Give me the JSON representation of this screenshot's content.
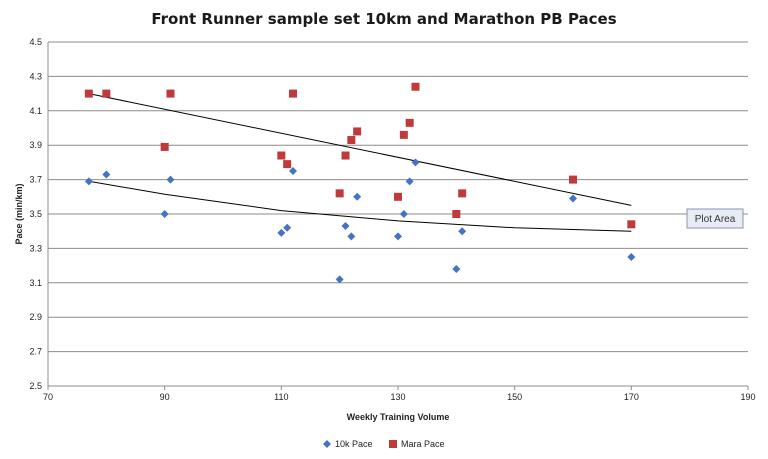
{
  "chart_data": {
    "type": "scatter",
    "title": "Front Runner sample set 10km and Marathon PB Paces",
    "xlabel": "Weekly Training Volume",
    "ylabel": "Pace (min/km)",
    "xlim": [
      70,
      190
    ],
    "ylim": [
      2.5,
      4.5
    ],
    "x_ticks": [
      70,
      90,
      110,
      130,
      150,
      170,
      190
    ],
    "y_ticks": [
      2.5,
      2.7,
      2.9,
      3.1,
      3.3,
      3.5,
      3.7,
      3.9,
      4.1,
      4.3,
      4.5
    ],
    "y_tick_labels": [
      "2.5",
      "2.7",
      "2.9",
      "3.1",
      "3.3",
      "3.5",
      "3.7",
      "3.9",
      "4.1",
      "4.3",
      "4.5"
    ],
    "grid": "horizontal",
    "legend_position": "bottom",
    "series": [
      {
        "name": "10k Pace",
        "marker": "diamond",
        "color": "#4472C4",
        "points": [
          [
            77,
            3.69
          ],
          [
            80,
            3.73
          ],
          [
            90,
            3.5
          ],
          [
            91,
            3.7
          ],
          [
            110,
            3.39
          ],
          [
            111,
            3.42
          ],
          [
            112,
            3.75
          ],
          [
            120,
            3.12
          ],
          [
            121,
            3.43
          ],
          [
            122,
            3.37
          ],
          [
            123,
            3.6
          ],
          [
            130,
            3.37
          ],
          [
            131,
            3.5
          ],
          [
            132,
            3.69
          ],
          [
            133,
            3.8
          ],
          [
            140,
            3.18
          ],
          [
            141,
            3.4
          ],
          [
            160,
            3.59
          ],
          [
            170,
            3.25
          ]
        ],
        "trendline": [
          [
            77,
            3.69
          ],
          [
            90,
            3.615
          ],
          [
            110,
            3.52
          ],
          [
            130,
            3.46
          ],
          [
            150,
            3.42
          ],
          [
            170,
            3.4
          ]
        ]
      },
      {
        "name": "Mara Pace",
        "marker": "square",
        "color": "#C0393B",
        "points": [
          [
            77,
            4.2
          ],
          [
            80,
            4.2
          ],
          [
            90,
            3.89
          ],
          [
            91,
            4.2
          ],
          [
            110,
            3.84
          ],
          [
            111,
            3.79
          ],
          [
            112,
            4.2
          ],
          [
            120,
            3.62
          ],
          [
            121,
            3.84
          ],
          [
            122,
            3.93
          ],
          [
            123,
            3.98
          ],
          [
            130,
            3.6
          ],
          [
            131,
            3.96
          ],
          [
            132,
            4.03
          ],
          [
            133,
            4.24
          ],
          [
            140,
            3.5
          ],
          [
            141,
            3.62
          ],
          [
            160,
            3.7
          ],
          [
            170,
            3.44
          ]
        ],
        "trendline": [
          [
            77,
            4.2
          ],
          [
            170,
            3.55
          ]
        ]
      }
    ],
    "annotation": "Plot Area"
  }
}
